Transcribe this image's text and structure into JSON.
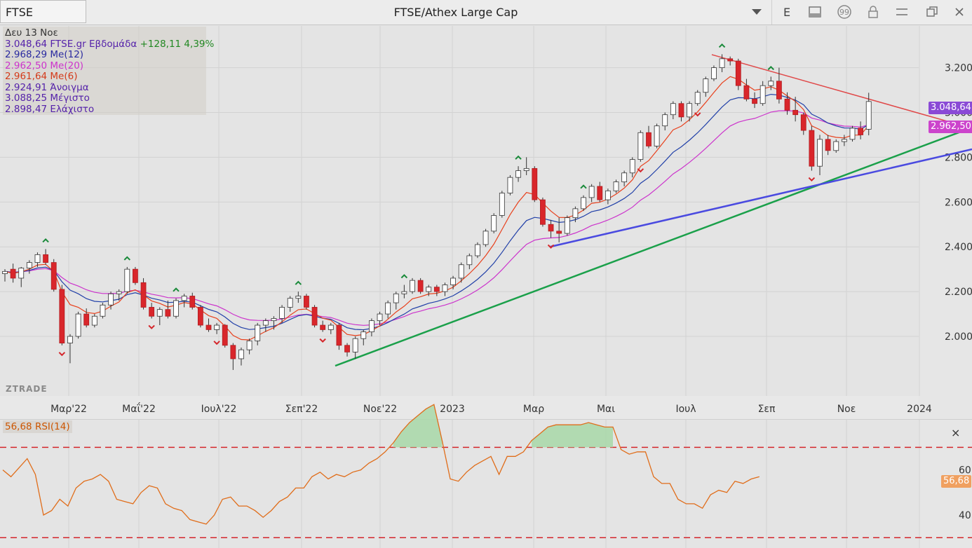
{
  "toolbar": {
    "symbol": "FTSE",
    "title": "FTSE/Athex Large Cap",
    "dropdown_icon": "triangle-down-icon",
    "text_button": "E",
    "icons": [
      "panel-icon",
      "quote-icon",
      "lock-icon",
      "menu-icon",
      "restore-icon",
      "close-icon"
    ]
  },
  "legend": {
    "date": "Δευ 13 Νοε",
    "price_line": "3.048,64 FTSE.gr Εβδομάδα",
    "change": "+128,11 4,39%",
    "ma12": "2.968,29 Me(12)",
    "ma20": "2.962,50 Me(20)",
    "ma6": "2.961,64 Me(6)",
    "open": "2.924,91 Άνοιγμα",
    "high": "3.088,25 Μέγιστο",
    "low": "2.898,47 Ελάχιστο"
  },
  "price_tags": {
    "last": "3.048,64",
    "ma20": "2.962,50"
  },
  "rsi_panel": {
    "label": "56,68 RSI(14)",
    "value_tag": "56,68",
    "close_icon": "×"
  },
  "watermark": "ZTRADE",
  "colors": {
    "up_candle": "#ffffff",
    "down_candle": "#d9262b",
    "ma6": "#e8401c",
    "ma12": "#2140a8",
    "ma20": "#cc33cc",
    "trend_green": "#1aa04a",
    "trend_blue": "#4a4ae0",
    "trend_red": "#e04848",
    "rsi": "#e06d1a",
    "legend_date": "#333333",
    "legend_price": "#5522aa",
    "legend_change": "#228822",
    "legend_ma12": "#2a2aa0",
    "legend_ma20": "#cc33cc",
    "legend_ma6": "#d43a1a",
    "legend_ohl": "#5522aa"
  },
  "chart_data": [
    {
      "type": "candlestick",
      "title": "FTSE/Athex Large Cap",
      "interval": "Εβδομάδα",
      "x_ticks": [
        "Μαρ'22",
        "Μαΐ'22",
        "Ιουλ'22",
        "Σεπ'22",
        "Νοε'22",
        "2023",
        "Μαρ",
        "Μαι",
        "Ιουλ",
        "Σεπ",
        "Νοε",
        "2024"
      ],
      "y_ticks": [
        "2.000",
        "2.200",
        "2.400",
        "2.600",
        "2.800",
        "3.000",
        "3.200"
      ],
      "ylim": [
        1800,
        3310
      ],
      "series": [
        {
          "name": "FTSE.gr",
          "candles": [
            [
              2280,
              2300,
              2245,
              2290
            ],
            [
              2300,
              2325,
              2240,
              2260
            ],
            [
              2260,
              2310,
              2220,
              2305
            ],
            [
              2305,
              2340,
              2280,
              2330
            ],
            [
              2330,
              2375,
              2310,
              2365
            ],
            [
              2365,
              2390,
              2320,
              2330
            ],
            [
              2330,
              2345,
              2200,
              2210
            ],
            [
              2210,
              2230,
              1960,
              1970
            ],
            [
              1970,
              2010,
              1880,
              2000
            ],
            [
              2000,
              2110,
              1990,
              2100
            ],
            [
              2100,
              2125,
              2040,
              2050
            ],
            [
              2050,
              2100,
              2040,
              2090
            ],
            [
              2090,
              2150,
              2080,
              2140
            ],
            [
              2140,
              2200,
              2120,
              2190
            ],
            [
              2190,
              2210,
              2160,
              2200
            ],
            [
              2200,
              2310,
              2190,
              2300
            ],
            [
              2300,
              2310,
              2230,
              2240
            ],
            [
              2240,
              2260,
              2120,
              2130
            ],
            [
              2130,
              2150,
              2080,
              2090
            ],
            [
              2090,
              2130,
              2050,
              2120
            ],
            [
              2120,
              2160,
              2080,
              2090
            ],
            [
              2090,
              2170,
              2080,
              2160
            ],
            [
              2160,
              2190,
              2130,
              2180
            ],
            [
              2180,
              2195,
              2120,
              2130
            ],
            [
              2130,
              2140,
              2040,
              2050
            ],
            [
              2050,
              2080,
              2020,
              2030
            ],
            [
              2030,
              2060,
              2010,
              2050
            ],
            [
              2050,
              2055,
              1950,
              1960
            ],
            [
              1960,
              1970,
              1850,
              1900
            ],
            [
              1900,
              1950,
              1870,
              1940
            ],
            [
              1940,
              1990,
              1920,
              1980
            ],
            [
              1980,
              2060,
              1960,
              2050
            ],
            [
              2050,
              2080,
              2020,
              2070
            ],
            [
              2070,
              2090,
              2030,
              2080
            ],
            [
              2080,
              2140,
              2060,
              2130
            ],
            [
              2130,
              2180,
              2110,
              2170
            ],
            [
              2170,
              2200,
              2150,
              2180
            ],
            [
              2180,
              2190,
              2120,
              2130
            ],
            [
              2130,
              2140,
              2040,
              2050
            ],
            [
              2050,
              2070,
              2020,
              2030
            ],
            [
              2030,
              2060,
              2010,
              2050
            ],
            [
              2050,
              2060,
              1940,
              1960
            ],
            [
              1960,
              1970,
              1910,
              1930
            ],
            [
              1930,
              2000,
              1900,
              1990
            ],
            [
              1990,
              2030,
              1960,
              2020
            ],
            [
              2020,
              2080,
              2000,
              2070
            ],
            [
              2070,
              2110,
              2050,
              2100
            ],
            [
              2100,
              2160,
              2080,
              2150
            ],
            [
              2150,
              2200,
              2120,
              2190
            ],
            [
              2190,
              2230,
              2170,
              2200
            ],
            [
              2200,
              2260,
              2190,
              2250
            ],
            [
              2250,
              2260,
              2190,
              2200
            ],
            [
              2200,
              2230,
              2180,
              2220
            ],
            [
              2220,
              2230,
              2180,
              2200
            ],
            [
              2200,
              2240,
              2180,
              2230
            ],
            [
              2230,
              2270,
              2210,
              2260
            ],
            [
              2260,
              2330,
              2240,
              2320
            ],
            [
              2320,
              2370,
              2300,
              2360
            ],
            [
              2360,
              2420,
              2350,
              2410
            ],
            [
              2410,
              2480,
              2400,
              2470
            ],
            [
              2470,
              2550,
              2460,
              2540
            ],
            [
              2540,
              2650,
              2530,
              2640
            ],
            [
              2640,
              2720,
              2630,
              2710
            ],
            [
              2710,
              2760,
              2690,
              2740
            ],
            [
              2740,
              2800,
              2720,
              2750
            ],
            [
              2750,
              2760,
              2600,
              2610
            ],
            [
              2610,
              2620,
              2490,
              2500
            ],
            [
              2500,
              2520,
              2440,
              2470
            ],
            [
              2470,
              2530,
              2420,
              2460
            ],
            [
              2460,
              2540,
              2450,
              2530
            ],
            [
              2530,
              2580,
              2510,
              2570
            ],
            [
              2570,
              2630,
              2560,
              2620
            ],
            [
              2620,
              2680,
              2600,
              2670
            ],
            [
              2670,
              2690,
              2600,
              2610
            ],
            [
              2610,
              2660,
              2590,
              2650
            ],
            [
              2650,
              2700,
              2640,
              2690
            ],
            [
              2690,
              2740,
              2670,
              2730
            ],
            [
              2730,
              2800,
              2710,
              2790
            ],
            [
              2790,
              2920,
              2780,
              2910
            ],
            [
              2910,
              2940,
              2840,
              2850
            ],
            [
              2850,
              2950,
              2840,
              2940
            ],
            [
              2940,
              3000,
              2920,
              2990
            ],
            [
              2990,
              3050,
              2970,
              3040
            ],
            [
              3040,
              3050,
              2960,
              2980
            ],
            [
              2980,
              3050,
              2960,
              3040
            ],
            [
              3040,
              3100,
              3030,
              3090
            ],
            [
              3090,
              3160,
              3070,
              3150
            ],
            [
              3150,
              3210,
              3140,
              3200
            ],
            [
              3200,
              3260,
              3180,
              3240
            ],
            [
              3240,
              3250,
              3210,
              3230
            ],
            [
              3230,
              3240,
              3100,
              3120
            ],
            [
              3120,
              3150,
              3050,
              3060
            ],
            [
              3060,
              3090,
              3020,
              3040
            ],
            [
              3040,
              3140,
              3030,
              3120
            ],
            [
              3120,
              3160,
              3100,
              3140
            ],
            [
              3140,
              3200,
              3040,
              3060
            ],
            [
              3060,
              3090,
              2990,
              3010
            ],
            [
              3010,
              3070,
              2960,
              2990
            ],
            [
              2990,
              3000,
              2900,
              2920
            ],
            [
              2920,
              2940,
              2740,
              2760
            ],
            [
              2760,
              2900,
              2720,
              2880
            ],
            [
              2880,
              2900,
              2810,
              2830
            ],
            [
              2830,
              2880,
              2820,
              2870
            ],
            [
              2870,
              2900,
              2850,
              2880
            ],
            [
              2880,
              2940,
              2870,
              2930
            ],
            [
              2930,
              2960,
              2880,
              2900
            ],
            [
              2925,
              3088,
              2898,
              3049
            ]
          ]
        }
      ],
      "moving_averages": [
        "Me(6)",
        "Me(12)",
        "Me(20)"
      ],
      "trendlines": [
        "green support",
        "blue support",
        "red resistance"
      ]
    },
    {
      "type": "line",
      "name": "RSI(14)",
      "y_ticks": [
        "40",
        "60"
      ],
      "levels": [
        70,
        30
      ],
      "values": [
        60,
        57,
        61,
        65,
        58,
        40,
        42,
        47,
        44,
        52,
        55,
        56,
        58,
        55,
        47,
        46,
        45,
        50,
        53,
        52,
        45,
        43,
        42,
        38,
        37,
        36,
        40,
        47,
        48,
        44,
        44,
        42,
        39,
        42,
        46,
        48,
        52,
        52,
        57,
        59,
        56,
        58,
        57,
        59,
        60,
        63,
        65,
        68,
        72,
        77,
        81,
        84,
        87,
        89,
        73,
        56,
        55,
        59,
        62,
        64,
        66,
        58,
        66,
        66,
        68,
        73,
        76,
        79,
        80,
        80,
        80,
        80,
        81,
        80,
        79,
        79,
        69,
        67,
        68,
        68,
        57,
        54,
        54,
        47,
        45,
        45,
        43,
        49,
        51,
        50,
        55,
        54,
        56,
        57
      ]
    }
  ]
}
